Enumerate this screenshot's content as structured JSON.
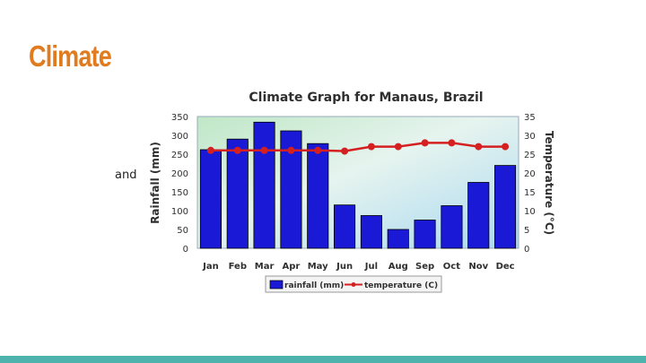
{
  "slide": {
    "title": "Climate",
    "side_text": "and"
  },
  "chart_data": {
    "type": "bar+line",
    "title": "Climate Graph for Manaus, Brazil",
    "categories": [
      "Jan",
      "Feb",
      "Mar",
      "Apr",
      "May",
      "Jun",
      "Jul",
      "Aug",
      "Sep",
      "Oct",
      "Nov",
      "Dec"
    ],
    "series": [
      {
        "name": "rainfall (mm)",
        "type": "bar",
        "axis": "left",
        "color": "#1a1ad6",
        "values": [
          262,
          290,
          335,
          312,
          278,
          115,
          87,
          50,
          75,
          113,
          175,
          220
        ]
      },
      {
        "name": "temperature (C)",
        "type": "line",
        "axis": "right",
        "color": "#d42020",
        "values": [
          26,
          26,
          26,
          26,
          26,
          25.8,
          27,
          27,
          28,
          28,
          27,
          27
        ]
      }
    ],
    "ylabel_left": "Rainfall (mm)",
    "ylabel_right": "Temperature (°C)",
    "ylim_left": [
      0,
      350
    ],
    "ylim_right": [
      0,
      35
    ],
    "yticks_left": [
      "0",
      "50",
      "100",
      "150",
      "200",
      "250",
      "300",
      "350"
    ],
    "yticks_right": [
      "0",
      "5",
      "10",
      "15",
      "20",
      "25",
      "30",
      "35"
    ],
    "legend_position": "bottom",
    "grid": false
  }
}
